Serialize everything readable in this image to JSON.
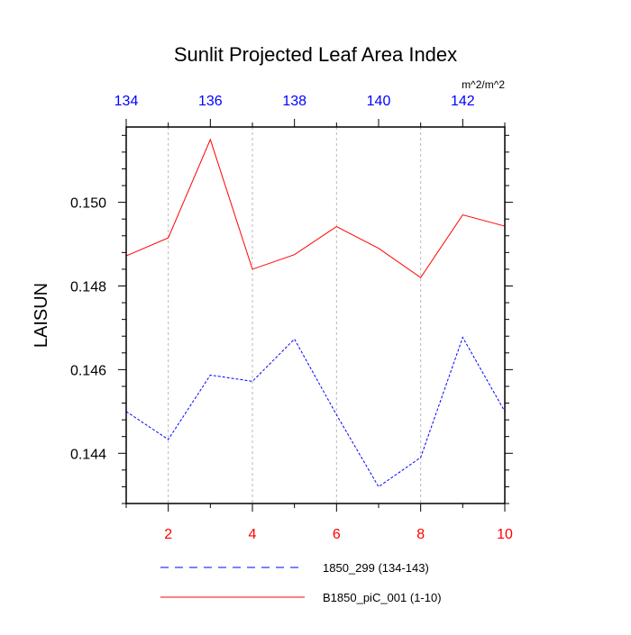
{
  "chart_data": {
    "type": "line",
    "title": "Sunlit Projected Leaf Area Index",
    "ylabel": "LAISUN",
    "units": "m^2/m^2",
    "ylim": [
      0.1428,
      0.1518
    ],
    "y_ticks": [
      0.144,
      0.146,
      0.148,
      0.15
    ],
    "y_tick_labels": [
      "0.144",
      "0.146",
      "0.148",
      "0.150"
    ],
    "y_minor_step": 0.0004,
    "xlim_bottom": [
      1,
      10
    ],
    "x_bottom_ticks": [
      2,
      4,
      6,
      8,
      10
    ],
    "x_bottom_tick_labels": [
      "2",
      "4",
      "6",
      "8",
      "10"
    ],
    "x_bottom_color": "#ff0000",
    "xlim_top": [
      134,
      143
    ],
    "x_top_ticks": [
      134,
      136,
      138,
      140,
      142
    ],
    "x_top_tick_labels": [
      "134",
      "136",
      "138",
      "140",
      "142"
    ],
    "x_top_color": "#0000ff",
    "grid": "vertical-dashed",
    "legend_position": "bottom",
    "series": [
      {
        "name": "1850_299 (134-143)",
        "axis": "top",
        "color": "#0000ff",
        "dash": "dashed",
        "x": [
          134,
          135,
          136,
          137,
          138,
          139,
          140,
          141,
          142,
          143
        ],
        "values": [
          0.145,
          0.14433,
          0.14587,
          0.14572,
          0.14673,
          0.14492,
          0.1432,
          0.1439,
          0.14677,
          0.145
        ]
      },
      {
        "name": "B1850_piC_001 (1-10)",
        "axis": "bottom",
        "color": "#ff0000",
        "dash": "solid",
        "x": [
          1,
          2,
          3,
          4,
          5,
          6,
          7,
          8,
          9,
          10
        ],
        "values": [
          0.14872,
          0.14915,
          0.1515,
          0.1484,
          0.14875,
          0.14942,
          0.1489,
          0.1482,
          0.1497,
          0.14943
        ]
      }
    ]
  }
}
